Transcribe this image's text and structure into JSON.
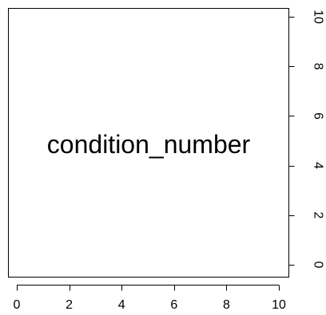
{
  "chart_data": {
    "type": "scatter",
    "title": "",
    "xlabel": "",
    "ylabel": "",
    "center_text": "condition_number",
    "xlim": [
      0,
      10
    ],
    "ylim": [
      0,
      10
    ],
    "x_ticks": [
      0,
      2,
      4,
      6,
      8,
      10
    ],
    "y_ticks": [
      0,
      2,
      4,
      6,
      8,
      10
    ],
    "x_axis_side": "bottom",
    "y_axis_side": "right",
    "y_tick_label_rotation": "vertical",
    "grid": false,
    "legend": "none",
    "series": []
  }
}
